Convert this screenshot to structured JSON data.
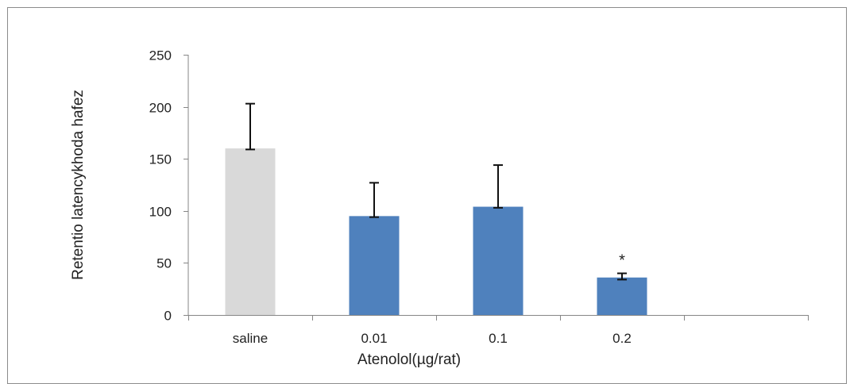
{
  "chart_data": {
    "type": "bar",
    "categories": [
      "saline",
      "0.01",
      "0.1",
      "0.2",
      ""
    ],
    "values": [
      160,
      95,
      104,
      36,
      null
    ],
    "error_upper": [
      43,
      32,
      40,
      4,
      null
    ],
    "error_lower": [
      1,
      1,
      1,
      2,
      null
    ],
    "bar_colors": [
      "#d9d9d9",
      "#4f81bd",
      "#4f81bd",
      "#4f81bd",
      null
    ],
    "annotations": [
      {
        "category": "0.2",
        "text": "*"
      }
    ],
    "title": "",
    "xlabel": "Atenolol(µg/rat)",
    "ylabel": "Retentio latencykhoda hafez",
    "ylim": [
      0,
      250
    ],
    "yticks": [
      0,
      50,
      100,
      150,
      200,
      250
    ],
    "grid": false,
    "legend": "none"
  }
}
